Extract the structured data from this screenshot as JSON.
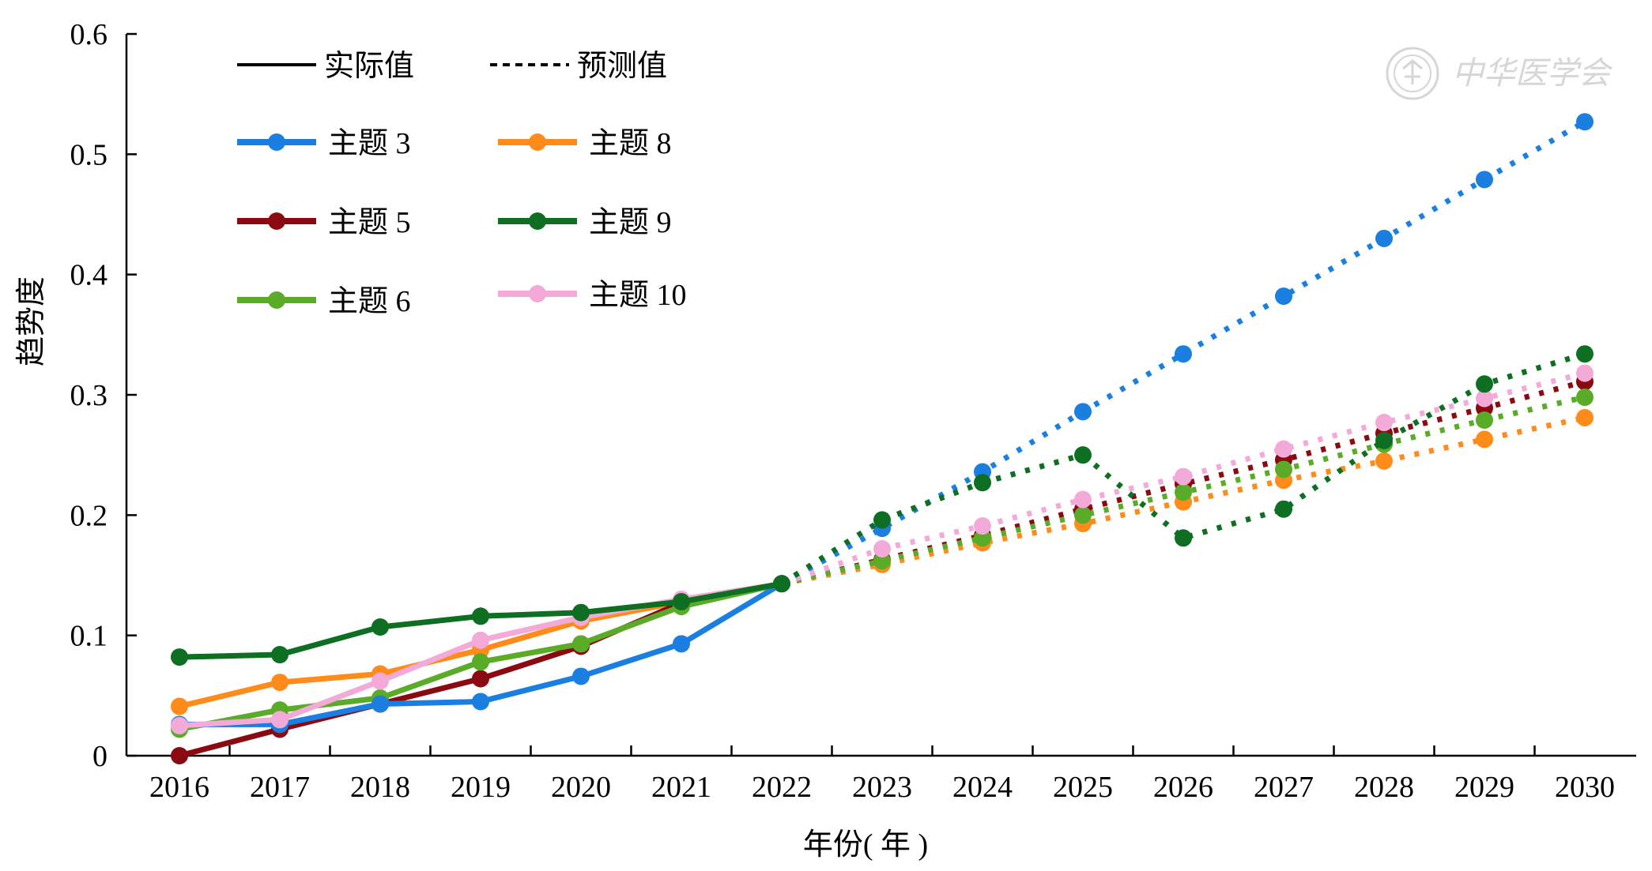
{
  "chart_data": {
    "type": "line",
    "xlabel": "年份( 年 )",
    "ylabel": "趋势度",
    "ylim": [
      0,
      0.6
    ],
    "yticks": [
      "0",
      "0.1",
      "0.2",
      "0.3",
      "0.4",
      "0.5",
      "0.6"
    ],
    "x": [
      "2016",
      "2017",
      "2018",
      "2019",
      "2020",
      "2021",
      "2022",
      "2023",
      "2024",
      "2025",
      "2026",
      "2027",
      "2028",
      "2029",
      "2030"
    ],
    "actual_range": [
      "2016",
      "2022"
    ],
    "forecast_range": [
      "2022",
      "2030"
    ],
    "grid": false,
    "legend": {
      "position": "top-left",
      "style_entries": [
        {
          "label": "实际值",
          "line": "solid"
        },
        {
          "label": "预测值",
          "line": "dotted"
        }
      ]
    },
    "series": [
      {
        "name": "主题 3",
        "color": "#1a7fe0",
        "values": [
          0.026,
          0.026,
          0.043,
          0.045,
          0.066,
          0.093,
          0.143,
          0.189,
          0.236,
          0.286,
          0.334,
          0.382,
          0.43,
          0.479,
          0.527
        ]
      },
      {
        "name": "主题 5",
        "color": "#8b0a12",
        "values": [
          0.0,
          0.022,
          0.043,
          0.064,
          0.091,
          0.127,
          0.143,
          0.163,
          0.183,
          0.205,
          0.226,
          0.246,
          0.268,
          0.289,
          0.311
        ]
      },
      {
        "name": "主题 6",
        "color": "#5aab28",
        "values": [
          0.022,
          0.038,
          0.048,
          0.078,
          0.093,
          0.124,
          0.143,
          0.162,
          0.181,
          0.2,
          0.219,
          0.238,
          0.259,
          0.279,
          0.298
        ]
      },
      {
        "name": "主题 8",
        "color": "#ff8c1a",
        "values": [
          0.041,
          0.061,
          0.068,
          0.088,
          0.112,
          0.128,
          0.143,
          0.159,
          0.177,
          0.193,
          0.211,
          0.229,
          0.245,
          0.263,
          0.281
        ]
      },
      {
        "name": "主题 9",
        "color": "#0e6e22",
        "values": [
          0.082,
          0.084,
          0.107,
          0.116,
          0.119,
          0.128,
          0.143,
          0.196,
          0.227,
          0.25,
          0.181,
          0.205,
          0.262,
          0.309,
          0.334
        ]
      },
      {
        "name": "主题 10",
        "color": "#f3aad8",
        "values": [
          0.025,
          0.03,
          0.062,
          0.096,
          0.115,
          0.13,
          0.143,
          0.172,
          0.191,
          0.213,
          0.232,
          0.255,
          0.277,
          0.297,
          0.318
        ]
      }
    ]
  },
  "watermark": {
    "text": "中华医学会",
    "icon": "society-seal-icon",
    "color": "#d6d6d6"
  }
}
